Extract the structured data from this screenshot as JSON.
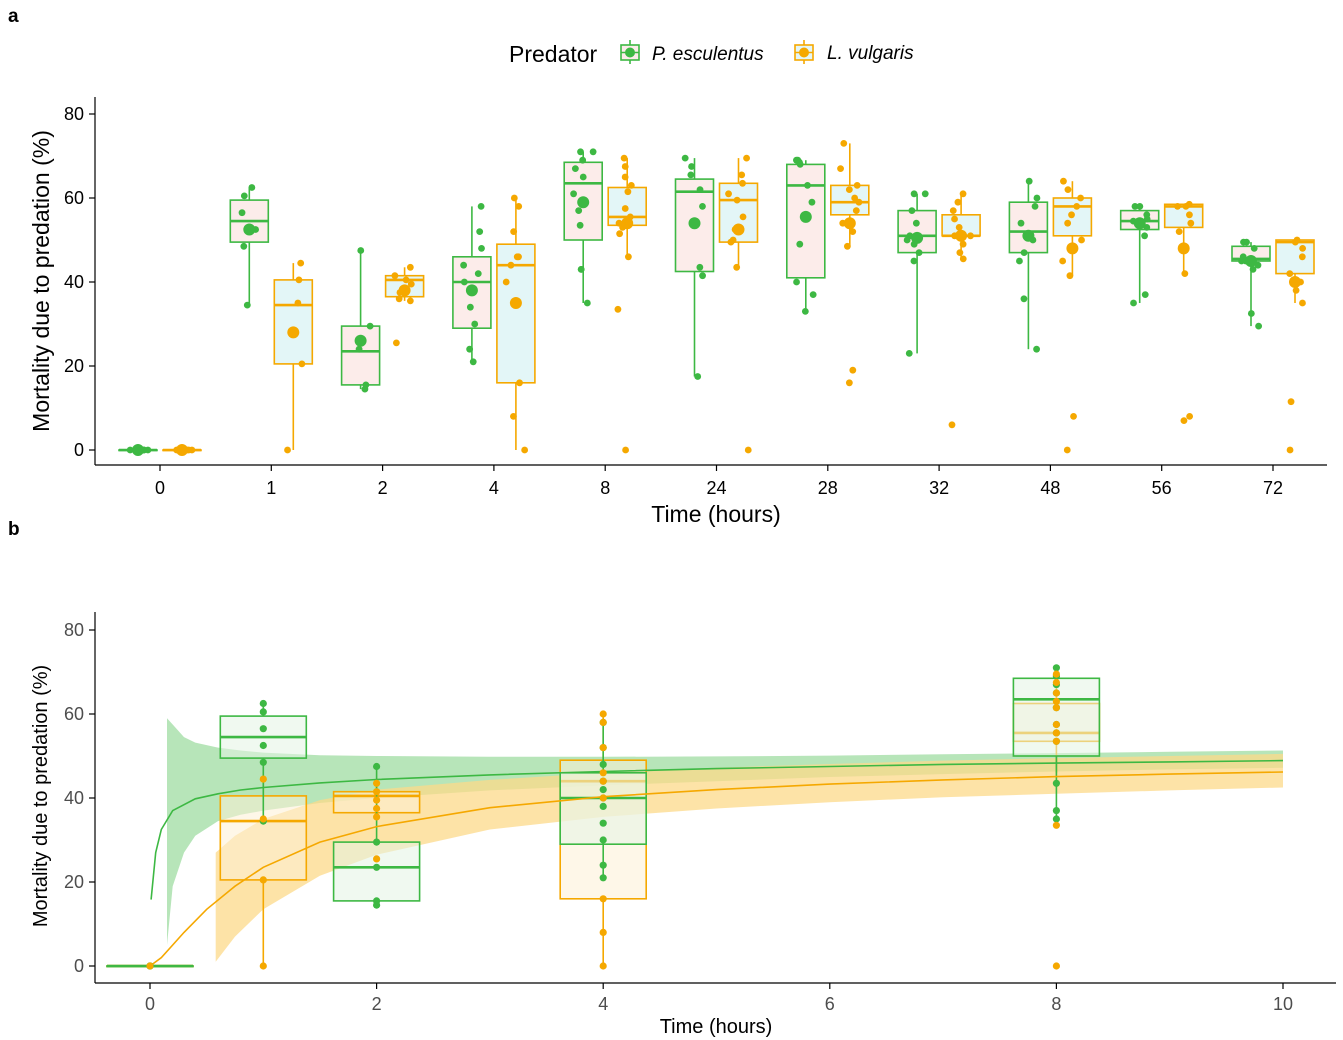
{
  "colors": {
    "p_esculentus": "#3db843",
    "l_vulgaris": "#f5a800",
    "box_fill_a_left": "#fcecea",
    "box_fill_a_right": "#e3f6f7",
    "box_fill_b_green": "#e3f4e4",
    "box_fill_b_yellow": "#fef1d5",
    "ribbon_green": "#9fdca1",
    "ribbon_yellow": "#fcd98a"
  },
  "panel_a": {
    "tag": "a",
    "legend": {
      "title": "Predator",
      "items": [
        "P. esculentus",
        "L. vulgaris"
      ]
    }
  },
  "panel_b": {
    "tag": "b"
  },
  "chart_data": [
    {
      "type": "box",
      "panel": "a",
      "xlabel": "Time (hours)",
      "ylabel": "Mortality due to predation (%)",
      "ylim": [
        -4,
        84
      ],
      "yticks": [
        0,
        20,
        40,
        60,
        80
      ],
      "categories": [
        "0",
        "1",
        "2",
        "4",
        "8",
        "24",
        "28",
        "32",
        "48",
        "56",
        "72"
      ],
      "legend_position": "top",
      "grid": false,
      "series": [
        {
          "name": "P. esculentus",
          "boxes": [
            {
              "q1": 0,
              "median": 0,
              "q3": 0,
              "lo": 0,
              "hi": 0,
              "mean": 0,
              "points": [
                0,
                0,
                0,
                0,
                0,
                0,
                0,
                0,
                0,
                0
              ]
            },
            {
              "q1": 49.5,
              "median": 54.5,
              "q3": 59.5,
              "lo": 34.5,
              "hi": 62.5,
              "mean": 52.5,
              "points": [
                62.5,
                60.5,
                56.5,
                52.5,
                48.5,
                34.5
              ]
            },
            {
              "q1": 15.5,
              "median": 23.5,
              "q3": 29.5,
              "lo": 14.5,
              "hi": 47.5,
              "mean": 26,
              "points": [
                47.5,
                29.5,
                24,
                15.5,
                14.5
              ]
            },
            {
              "q1": 29,
              "median": 40,
              "q3": 46,
              "lo": 21,
              "hi": 58,
              "mean": 38,
              "points": [
                58,
                52,
                48,
                44,
                42,
                40,
                38,
                34,
                30,
                24,
                21
              ]
            },
            {
              "q1": 50,
              "median": 63.5,
              "q3": 68.5,
              "lo": 35,
              "hi": 71,
              "mean": 59,
              "points": [
                71,
                71,
                69,
                67,
                65,
                61,
                57,
                53.5,
                43,
                43,
                35
              ]
            },
            {
              "q1": 42.5,
              "median": 61.5,
              "q3": 64.5,
              "lo": 17.5,
              "hi": 69.5,
              "mean": 54,
              "points": [
                69.5,
                67.5,
                65.5,
                62,
                58,
                54,
                43.5,
                41.5,
                17.5
              ]
            },
            {
              "q1": 41,
              "median": 63,
              "q3": 68,
              "lo": 33,
              "hi": 69,
              "mean": 55.5,
              "points": [
                69,
                69,
                68.5,
                68,
                63,
                59,
                55.5,
                49,
                40,
                37,
                33
              ]
            },
            {
              "q1": 47,
              "median": 51,
              "q3": 57,
              "lo": 23,
              "hi": 61,
              "mean": 50.5,
              "points": [
                61,
                61,
                57,
                54,
                51,
                50,
                49,
                47,
                45,
                23
              ]
            },
            {
              "q1": 47,
              "median": 52,
              "q3": 59,
              "lo": 24,
              "hi": 64,
              "mean": 51,
              "points": [
                64,
                60,
                58,
                54,
                51,
                50,
                47,
                45,
                36,
                24
              ]
            },
            {
              "q1": 52.5,
              "median": 54.5,
              "q3": 57,
              "lo": 35,
              "hi": 58,
              "mean": 54,
              "points": [
                58,
                58,
                56,
                55,
                54.5,
                53,
                51,
                37,
                35
              ]
            },
            {
              "q1": 45,
              "median": 45.5,
              "q3": 48.5,
              "lo": 29.5,
              "hi": 49.5,
              "mean": 45,
              "points": [
                49.5,
                49.5,
                48,
                46,
                45,
                45,
                44,
                43,
                32.5,
                29.5
              ]
            }
          ]
        },
        {
          "name": "L. vulgaris",
          "boxes": [
            {
              "q1": 0,
              "median": 0,
              "q3": 0,
              "lo": 0,
              "hi": 0,
              "mean": 0,
              "points": [
                0,
                0,
                0,
                0,
                0,
                0,
                0,
                0,
                0,
                0
              ]
            },
            {
              "q1": 20.5,
              "median": 34.5,
              "q3": 40.5,
              "lo": 0,
              "hi": 44.5,
              "mean": 28,
              "points": [
                44.5,
                40.5,
                35,
                20.5,
                0
              ]
            },
            {
              "q1": 36.5,
              "median": 40.5,
              "q3": 41.5,
              "lo": 35.5,
              "hi": 43.5,
              "mean": 38,
              "points": [
                43.5,
                41.5,
                40.5,
                39.5,
                37.5,
                36,
                35.5,
                25.5
              ]
            },
            {
              "q1": 16,
              "median": 44,
              "q3": 49,
              "lo": 0,
              "hi": 60,
              "mean": 35,
              "points": [
                60,
                58,
                52,
                46,
                46,
                44,
                40,
                16,
                8,
                0
              ]
            },
            {
              "q1": 53.5,
              "median": 55.5,
              "q3": 62.5,
              "lo": 46,
              "hi": 69.5,
              "mean": 54,
              "points": [
                69.5,
                67.5,
                65,
                63,
                61.5,
                57.5,
                55.5,
                54,
                53,
                51.5,
                46,
                33.5,
                0
              ]
            },
            {
              "q1": 49.5,
              "median": 59.5,
              "q3": 63.5,
              "lo": 43.5,
              "hi": 69.5,
              "mean": 52.5,
              "points": [
                69.5,
                65.5,
                63.5,
                61,
                59.5,
                55.5,
                52.5,
                50,
                49.5,
                43.5,
                0
              ]
            },
            {
              "q1": 56,
              "median": 59,
              "q3": 63,
              "lo": 48.5,
              "hi": 73,
              "mean": 54,
              "points": [
                73,
                67,
                63,
                62,
                60,
                59,
                57,
                54,
                52,
                48.5,
                19,
                16
              ]
            },
            {
              "q1": 51,
              "median": 51,
              "q3": 56,
              "lo": 45.5,
              "hi": 61,
              "mean": 51,
              "points": [
                61,
                59,
                57,
                55,
                53,
                51,
                51,
                49,
                47,
                45.5,
                6
              ]
            },
            {
              "q1": 51,
              "median": 58,
              "q3": 60,
              "lo": 41.5,
              "hi": 64,
              "mean": 48,
              "points": [
                64,
                62,
                60,
                58,
                56,
                54,
                50,
                48,
                45,
                41.5,
                8,
                0
              ]
            },
            {
              "q1": 53,
              "median": 58,
              "q3": 58.5,
              "lo": 42,
              "hi": 58.5,
              "mean": 48,
              "points": [
                58.5,
                58,
                58,
                56,
                54,
                52,
                48,
                42,
                8,
                7
              ]
            },
            {
              "q1": 42,
              "median": 49.5,
              "q3": 50,
              "lo": 35,
              "hi": 50,
              "mean": 40,
              "points": [
                50,
                49.5,
                48,
                46,
                42,
                40,
                38,
                35,
                11.5,
                0
              ]
            }
          ]
        }
      ]
    },
    {
      "type": "box",
      "panel": "b",
      "xlabel": "Time (hours)",
      "ylabel": "Mortality due to predation (%)",
      "xlim": [
        -0.5,
        10.5
      ],
      "ylim": [
        -4,
        84
      ],
      "xticks": [
        0,
        2,
        4,
        6,
        8,
        10
      ],
      "yticks": [
        0,
        20,
        40,
        60,
        80
      ],
      "grid": false,
      "series": [
        {
          "name": "P. esculentus",
          "boxes": [
            {
              "x": 0,
              "q1": 0,
              "median": 0,
              "q3": 0,
              "lo": 0,
              "hi": 0,
              "points": [
                0,
                0,
                0
              ]
            },
            {
              "x": 1,
              "q1": 49.5,
              "median": 54.5,
              "q3": 59.5,
              "lo": 34.5,
              "hi": 62.5,
              "points": [
                62.5,
                60.5,
                56.5,
                52.5,
                48.5,
                34.5
              ]
            },
            {
              "x": 2,
              "q1": 15.5,
              "median": 23.5,
              "q3": 29.5,
              "lo": 14.5,
              "hi": 47.5,
              "points": [
                47.5,
                29.5,
                23.5,
                15.5,
                14.5
              ]
            },
            {
              "x": 4,
              "q1": 29,
              "median": 40,
              "q3": 46,
              "lo": 21,
              "hi": 58,
              "points": [
                58,
                52,
                48,
                44,
                42,
                40,
                38,
                34,
                30,
                24,
                21
              ]
            },
            {
              "x": 8,
              "q1": 50,
              "median": 63.5,
              "q3": 68.5,
              "lo": 35,
              "hi": 71,
              "points": [
                71,
                69,
                67,
                65,
                61.5,
                57.5,
                55.5,
                53.5,
                43.5,
                37,
                35
              ]
            }
          ],
          "fit": {
            "x": [
              0.01,
              0.05,
              0.1,
              0.2,
              0.4,
              0.6,
              0.8,
              1,
              1.5,
              2,
              3,
              4,
              5,
              6,
              7,
              8,
              9,
              10
            ],
            "y": [
              15.8,
              27,
              32.5,
              37,
              39.8,
              41,
              41.9,
              42.5,
              43.6,
              44.4,
              45.5,
              46.3,
              47,
              47.5,
              48,
              48.3,
              48.6,
              48.9
            ]
          },
          "ribbon": {
            "x": [
              0.15,
              0.2,
              0.3,
              0.4,
              0.6,
              0.8,
              1,
              1.5,
              2,
              3,
              4,
              5,
              6,
              7,
              8,
              9,
              10
            ],
            "lo": [
              5,
              19,
              27,
              31,
              34.5,
              36,
              37,
              38.8,
              40,
              41.8,
              43,
              44,
              45,
              45.7,
              46.3,
              46.8,
              47.2
            ],
            "hi": [
              59,
              57.5,
              54.5,
              53.2,
              52,
              51.3,
              50.8,
              50.2,
              50,
              49.8,
              49.8,
              49.9,
              50.1,
              50.4,
              50.7,
              51,
              51.3
            ]
          }
        },
        {
          "name": "L. vulgaris",
          "boxes": [
            {
              "x": 0,
              "q1": 0,
              "median": 0,
              "q3": 0,
              "lo": 0,
              "hi": 0,
              "points": [
                0
              ]
            },
            {
              "x": 1,
              "q1": 20.5,
              "median": 34.5,
              "q3": 40.5,
              "lo": 0,
              "hi": 44.5,
              "points": [
                44.5,
                35,
                20.5,
                0
              ]
            },
            {
              "x": 2,
              "q1": 36.5,
              "median": 40.5,
              "q3": 41.5,
              "lo": 35.5,
              "hi": 43.5,
              "points": [
                43.5,
                41.5,
                39.5,
                37.5,
                35.5,
                25.5
              ]
            },
            {
              "x": 4,
              "q1": 16,
              "median": 44,
              "q3": 49,
              "lo": 0,
              "hi": 60,
              "points": [
                60,
                58,
                52,
                46,
                44,
                40,
                16,
                8,
                0
              ]
            },
            {
              "x": 8,
              "q1": 53.5,
              "median": 55.5,
              "q3": 62.5,
              "lo": 46,
              "hi": 69.5,
              "points": [
                69.5,
                67.5,
                65,
                63,
                61.5,
                57.5,
                55.5,
                53.5,
                33.5,
                0
              ]
            }
          ],
          "fit": {
            "x": [
              0,
              0.1,
              0.2,
              0.3,
              0.5,
              0.75,
              1,
              1.5,
              2,
              3,
              4,
              5,
              6,
              7,
              8,
              9,
              10
            ],
            "y": [
              0,
              2,
              5,
              8,
              13.5,
              19,
              23.5,
              29.5,
              33.2,
              37.7,
              40.3,
              42,
              43.3,
              44.3,
              45.1,
              45.7,
              46.2
            ]
          },
          "ribbon": {
            "x": [
              0.58,
              0.75,
              1,
              1.5,
              2,
              3,
              4,
              5,
              6,
              7,
              8,
              9,
              10
            ],
            "lo": [
              1,
              7,
              13.5,
              21.5,
              26.5,
              32.5,
              35.5,
              37.5,
              39,
              40.2,
              41,
              41.8,
              42.5
            ],
            "hi": [
              27,
              31,
              35,
              39.5,
              42,
              44.3,
              46,
              47.2,
              48.1,
              48.9,
              49.5,
              50,
              50.5
            ]
          }
        }
      ]
    }
  ]
}
